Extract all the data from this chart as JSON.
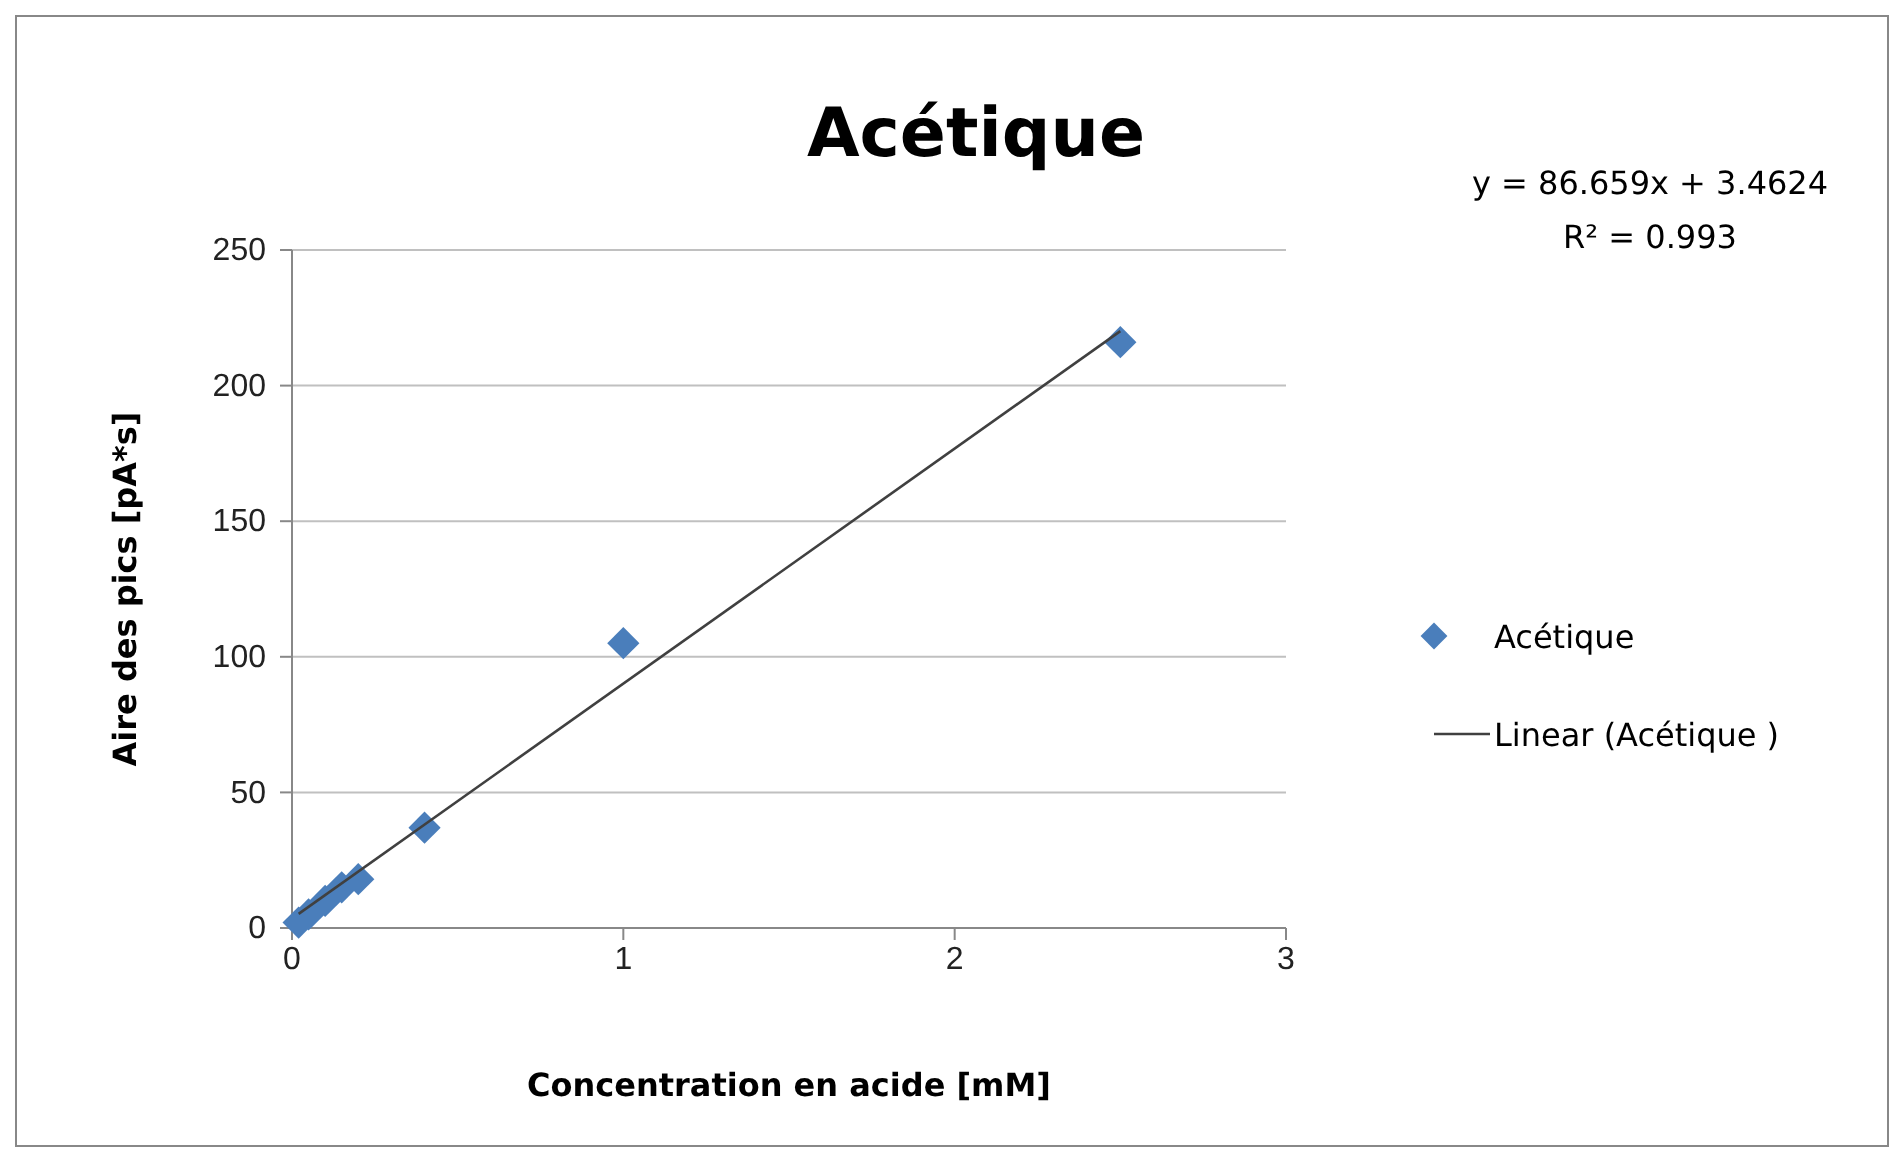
{
  "chart_data": {
    "type": "scatter",
    "title": "Acétique",
    "xlabel": "Concentration en acide [mM]",
    "ylabel": "Aire des pics [pA*s]",
    "xlim": [
      0,
      3
    ],
    "xticks": [
      0,
      1,
      2,
      3
    ],
    "ylim": [
      0,
      250
    ],
    "yticks": [
      0,
      50,
      100,
      150,
      200,
      250
    ],
    "grid": "y",
    "legend": "right",
    "annotations": [
      "y = 86.659x + 3.4624",
      "R² = 0.993"
    ],
    "series": [
      {
        "name": "Acétique",
        "marker": "diamond",
        "color": "#4a7ebb",
        "x": [
          0.02,
          0.05,
          0.1,
          0.15,
          0.2,
          0.4,
          1,
          2.5
        ],
        "values": [
          2,
          5,
          10,
          15,
          18,
          37,
          105,
          216
        ]
      },
      {
        "name": "Linear (Acétique )",
        "type": "line",
        "color": "#404040",
        "x": [
          0.02,
          2.5
        ],
        "values": [
          5.2,
          220.1
        ]
      }
    ]
  }
}
